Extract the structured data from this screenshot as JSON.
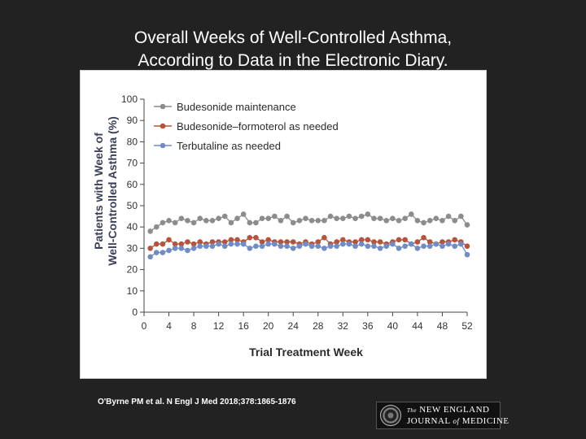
{
  "slide": {
    "title_line1": "Overall Weeks of Well-Controlled Asthma,",
    "title_line2": "According to Data in the Electronic Diary.",
    "citation": "O'Byrne PM et al. N Engl J Med 2018;378:1865-1876"
  },
  "logo": {
    "the": "The",
    "name1": "NEW ENGLAND",
    "name2a": "JOURNAL",
    "name2b": "of",
    "name2c": "MEDICINE"
  },
  "chart_data": {
    "type": "line",
    "title": "",
    "xlabel": "Trial Treatment Week",
    "ylabel_line1": "Patients with Week of",
    "ylabel_line2": "Well-Controlled Asthma (%)",
    "xlim": [
      0,
      52
    ],
    "ylim": [
      0,
      100
    ],
    "xticks": [
      0,
      4,
      8,
      12,
      16,
      20,
      24,
      28,
      32,
      36,
      40,
      44,
      48,
      52
    ],
    "yticks": [
      0,
      10,
      20,
      30,
      40,
      50,
      60,
      70,
      80,
      90,
      100
    ],
    "x": [
      1,
      2,
      3,
      4,
      5,
      6,
      7,
      8,
      9,
      10,
      11,
      12,
      13,
      14,
      15,
      16,
      17,
      18,
      19,
      20,
      21,
      22,
      23,
      24,
      25,
      26,
      27,
      28,
      29,
      30,
      31,
      32,
      33,
      34,
      35,
      36,
      37,
      38,
      39,
      40,
      41,
      42,
      43,
      44,
      45,
      46,
      47,
      48,
      49,
      50,
      51,
      52
    ],
    "series": [
      {
        "name": "Budesonide maintenance",
        "color": "#8c8c8c",
        "values": [
          38,
          40,
          42,
          43,
          42,
          44,
          43,
          42,
          44,
          43,
          43,
          44,
          45,
          42,
          44,
          46,
          42,
          42,
          44,
          44,
          45,
          43,
          45,
          42,
          43,
          44,
          43,
          43,
          43,
          45,
          44,
          44,
          45,
          44,
          45,
          46,
          44,
          44,
          43,
          44,
          43,
          44,
          46,
          43,
          42,
          43,
          44,
          43,
          45,
          43,
          45,
          41
        ]
      },
      {
        "name": "Budesonide–formoterol as needed",
        "color": "#b5533c",
        "values": [
          30,
          32,
          32,
          34,
          32,
          32,
          33,
          32,
          33,
          32,
          33,
          33,
          33,
          34,
          34,
          33,
          35,
          35,
          33,
          34,
          33,
          33,
          33,
          33,
          32,
          33,
          32,
          33,
          35,
          32,
          33,
          34,
          33,
          33,
          34,
          34,
          33,
          33,
          32,
          33,
          34,
          34,
          32,
          33,
          35,
          33,
          32,
          33,
          33,
          34,
          33,
          31
        ]
      },
      {
        "name": "Terbutaline as needed",
        "color": "#6f8cc6",
        "values": [
          26,
          28,
          28,
          29,
          30,
          30,
          29,
          30,
          31,
          31,
          31,
          32,
          31,
          32,
          32,
          32,
          30,
          31,
          31,
          32,
          32,
          31,
          31,
          30,
          31,
          32,
          31,
          31,
          30,
          31,
          31,
          32,
          32,
          31,
          32,
          31,
          31,
          30,
          31,
          32,
          30,
          31,
          32,
          30,
          31,
          31,
          32,
          31,
          32,
          31,
          32,
          27
        ]
      }
    ]
  }
}
